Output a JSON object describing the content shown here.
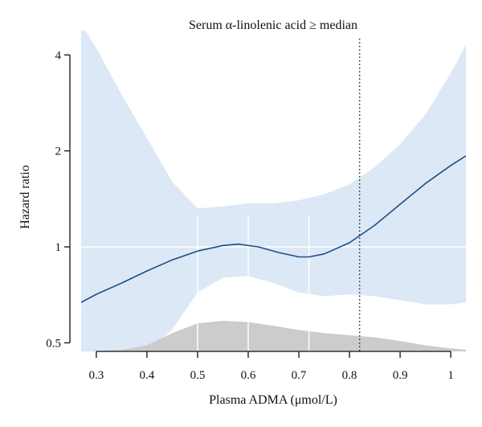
{
  "chart_data": {
    "type": "line",
    "title": "Serum α-linolenic acid ≥ median",
    "xlabel": "Plasma ADMA (μmol/L)",
    "ylabel": "Hazard ratio",
    "xlim": [
      0.27,
      1.03
    ],
    "ylim_log": [
      0.47,
      4.5
    ],
    "y_scale": "log",
    "x_ticks": [
      0.3,
      0.4,
      0.5,
      0.6,
      0.7,
      0.8,
      0.9,
      1.0
    ],
    "x_tick_labels": [
      "0.3",
      "0.4",
      "0.5",
      "0.6",
      "0.7",
      "0.8",
      "0.9",
      "1"
    ],
    "y_ticks": [
      0.5,
      1,
      2,
      4
    ],
    "y_tick_labels": [
      "0.5",
      "1",
      "2",
      "4"
    ],
    "reference_line_y": 1,
    "vertical_dotted_line_x": 0.82,
    "white_vertical_lines_x": [
      0.5,
      0.6,
      0.72
    ],
    "series": [
      {
        "role": "estimate",
        "x": [
          0.27,
          0.3,
          0.35,
          0.4,
          0.45,
          0.5,
          0.55,
          0.58,
          0.62,
          0.66,
          0.7,
          0.72,
          0.75,
          0.8,
          0.85,
          0.9,
          0.95,
          1.0,
          1.03
        ],
        "y": [
          0.67,
          0.71,
          0.77,
          0.84,
          0.91,
          0.97,
          1.01,
          1.02,
          1.0,
          0.96,
          0.93,
          0.93,
          0.95,
          1.03,
          1.17,
          1.36,
          1.58,
          1.8,
          1.93
        ]
      }
    ],
    "confidence_band": {
      "x": [
        0.27,
        0.3,
        0.35,
        0.4,
        0.45,
        0.5,
        0.55,
        0.6,
        0.65,
        0.7,
        0.75,
        0.8,
        0.85,
        0.9,
        0.95,
        1.0,
        1.03
      ],
      "upper": [
        5.0,
        4.2,
        3.0,
        2.2,
        1.6,
        1.32,
        1.34,
        1.37,
        1.37,
        1.4,
        1.46,
        1.57,
        1.78,
        2.1,
        2.6,
        3.5,
        4.3
      ],
      "lower": [
        0.47,
        0.47,
        0.47,
        0.47,
        0.55,
        0.72,
        0.8,
        0.81,
        0.77,
        0.72,
        0.7,
        0.71,
        0.7,
        0.68,
        0.66,
        0.66,
        0.67
      ]
    },
    "density": {
      "x": [
        0.27,
        0.3,
        0.35,
        0.4,
        0.45,
        0.5,
        0.55,
        0.6,
        0.65,
        0.7,
        0.75,
        0.8,
        0.85,
        0.9,
        0.95,
        1.0,
        1.03
      ],
      "h": [
        0.0,
        0.01,
        0.05,
        0.2,
        0.6,
        0.92,
        1.0,
        0.96,
        0.84,
        0.7,
        0.6,
        0.53,
        0.46,
        0.34,
        0.2,
        0.1,
        0.06
      ]
    },
    "colors": {
      "band": "#dce8f6",
      "line": "#1f4e82",
      "density": "#cccccc",
      "refline": "#ffffff",
      "axis": "#111111"
    }
  }
}
